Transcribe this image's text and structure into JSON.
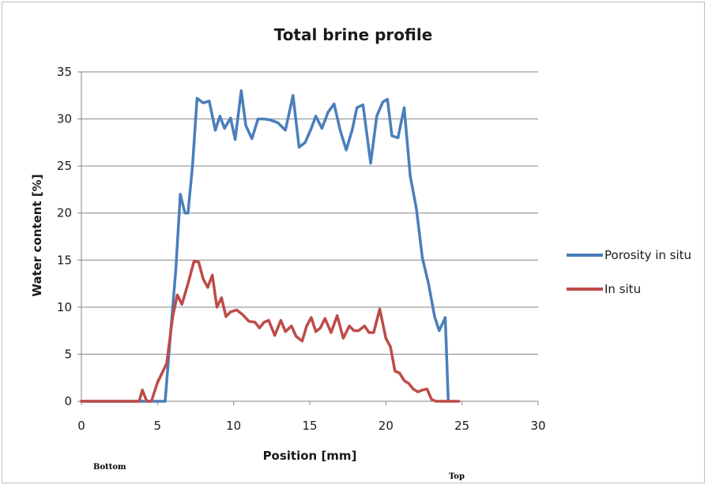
{
  "chart_data": {
    "type": "line",
    "title": "Total brine profile",
    "xlabel": "Position [mm]",
    "ylabel": "Water content [%]",
    "xlim": [
      0,
      30
    ],
    "ylim": [
      0,
      35
    ],
    "xticks": [
      0,
      5,
      10,
      15,
      20,
      25,
      30
    ],
    "yticks": [
      0,
      5,
      10,
      15,
      20,
      25,
      30,
      35
    ],
    "grid": "horizontal",
    "legend": "right",
    "series": [
      {
        "name": "Porosity in situ",
        "color": "#4a7ebb",
        "x": [
          0,
          5.5,
          5.6,
          5.8,
          6.0,
          6.2,
          6.5,
          6.8,
          7.0,
          7.3,
          7.6,
          8.0,
          8.4,
          8.8,
          9.1,
          9.4,
          9.8,
          10.1,
          10.5,
          10.8,
          11.2,
          11.6,
          12.0,
          12.4,
          12.9,
          13.4,
          13.9,
          14.3,
          14.7,
          15.1,
          15.4,
          15.8,
          16.2,
          16.6,
          17.0,
          17.4,
          17.8,
          18.1,
          18.5,
          19.0,
          19.4,
          19.8,
          20.1,
          20.4,
          20.8,
          21.2,
          21.6,
          22.0,
          22.4,
          22.8,
          23.2,
          23.5,
          23.9,
          24.1
        ],
        "y": [
          0,
          0,
          2,
          6,
          10,
          14,
          22,
          20,
          20,
          25,
          32.2,
          31.7,
          31.9,
          28.8,
          30.3,
          29,
          30.1,
          27.8,
          33,
          29.3,
          27.9,
          30,
          30,
          29.9,
          29.6,
          28.8,
          32.5,
          27,
          27.5,
          29,
          30.3,
          29,
          30.7,
          31.6,
          28.8,
          26.7,
          28.9,
          31.2,
          31.5,
          25.3,
          30.3,
          31.8,
          32.1,
          28.2,
          28,
          31.2,
          23.9,
          20.5,
          15.2,
          12.5,
          9,
          7.5,
          8.9,
          0
        ]
      },
      {
        "name": "In situ",
        "color": "#be4b48",
        "x": [
          0,
          3.8,
          4.0,
          4.3,
          4.6,
          5.0,
          5.3,
          5.6,
          6.0,
          6.3,
          6.6,
          7.0,
          7.4,
          7.7,
          8.0,
          8.3,
          8.6,
          8.9,
          9.2,
          9.5,
          9.8,
          10.2,
          10.6,
          11.0,
          11.4,
          11.7,
          12.0,
          12.3,
          12.7,
          13.1,
          13.4,
          13.8,
          14.1,
          14.5,
          14.8,
          15.1,
          15.4,
          15.7,
          16.0,
          16.4,
          16.8,
          17.2,
          17.6,
          17.9,
          18.2,
          18.6,
          18.9,
          19.2,
          19.6,
          20.0,
          20.3,
          20.6,
          20.9,
          21.2,
          21.5,
          21.8,
          22.1,
          22.4,
          22.7,
          23.0,
          23.3,
          23.6,
          23.9,
          24.2,
          24.5,
          24.8
        ],
        "y": [
          0,
          0,
          1.2,
          0,
          0,
          2,
          3,
          4,
          9,
          11.3,
          10.3,
          12.5,
          14.9,
          14.8,
          13,
          12.1,
          13.4,
          10,
          11,
          9,
          9.5,
          9.7,
          9.2,
          8.5,
          8.4,
          7.8,
          8.4,
          8.6,
          7,
          8.6,
          7.4,
          8,
          6.9,
          6.4,
          8,
          8.9,
          7.4,
          7.8,
          8.8,
          7.3,
          9.1,
          6.7,
          8,
          7.5,
          7.5,
          8,
          7.3,
          7.3,
          9.8,
          6.7,
          5.8,
          3.2,
          3,
          2.2,
          1.9,
          1.3,
          1,
          1.2,
          1.3,
          0.2,
          0,
          0,
          0,
          0,
          0,
          0
        ]
      }
    ],
    "annotations": [
      "Bottom",
      "Top"
    ]
  }
}
